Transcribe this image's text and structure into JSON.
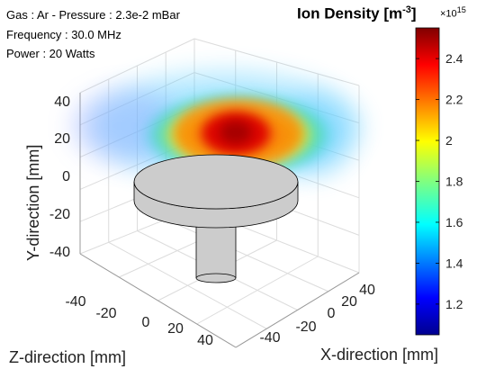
{
  "annotations": {
    "gas": "Gas : Ar - Pressure : 2.3e-2 mBar",
    "frequency": "Frequency : 30.0 MHz",
    "power": "Power : 20 Watts"
  },
  "chart_data": {
    "type": "heatmap",
    "title": "",
    "colorbar": {
      "label": "Ion Density [m",
      "label_exponent": "-3",
      "label_suffix": "]",
      "multiplier": "×10",
      "multiplier_exponent": "15",
      "range": [
        1.05,
        2.55
      ],
      "ticks": [
        "1.2",
        "1.4",
        "1.6",
        "1.8",
        "2",
        "2.2",
        "2.4"
      ],
      "tick_values": [
        1.2,
        1.4,
        1.6,
        1.8,
        2.0,
        2.2,
        2.4
      ],
      "colormap": "jet"
    },
    "axes": {
      "x": {
        "label": "X-direction [mm]",
        "ticks": [
          "-40",
          "-20",
          "0",
          "20",
          "40"
        ],
        "range": [
          -45,
          45
        ]
      },
      "y": {
        "label": "Y-direction [mm]",
        "ticks": [
          "-40",
          "-20",
          "0",
          "20",
          "40"
        ],
        "range": [
          -50,
          45
        ]
      },
      "z": {
        "label": "Z-direction [mm]",
        "ticks": [
          "-40",
          "-20",
          "0",
          "20",
          "40"
        ],
        "range": [
          -45,
          45
        ]
      }
    },
    "grid": true,
    "plasma_peak": {
      "x_mm": 0,
      "y_mm": 20,
      "z_mm": 0,
      "density_e15": 2.5
    },
    "electrode": {
      "shape": "disc on cylindrical stem",
      "color": "#cccccc"
    }
  }
}
